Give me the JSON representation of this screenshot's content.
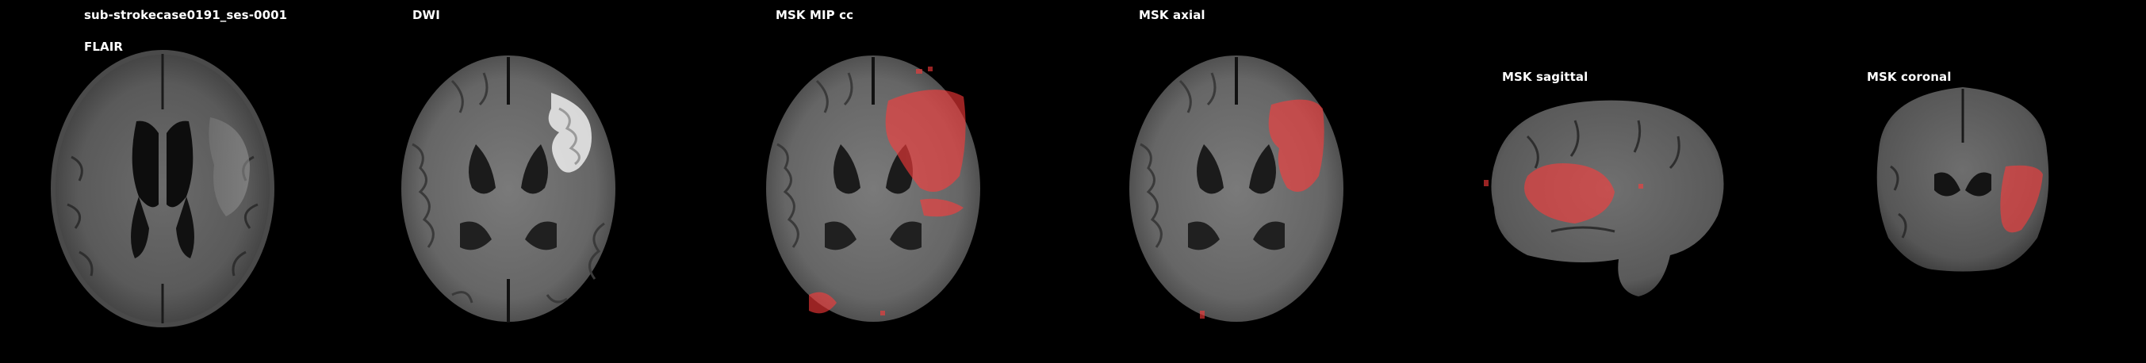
{
  "figure": {
    "subject_title": "sub-strokecase0191_ses-0001",
    "panels": [
      {
        "title": "FLAIR",
        "view": "axial",
        "modality": "FLAIR",
        "overlay": "none"
      },
      {
        "title": "DWI",
        "view": "axial",
        "modality": "DWI",
        "overlay": "none",
        "hyperintensity": "right-side lesion"
      },
      {
        "title": "MSK MIP cc",
        "view": "axial",
        "modality": "DWI",
        "overlay": "red lesion mask (maximum intensity projection)"
      },
      {
        "title": "MSK axial",
        "view": "axial",
        "modality": "DWI",
        "overlay": "red lesion mask"
      },
      {
        "title": "MSK sagittal",
        "view": "sagittal",
        "modality": "DWI",
        "overlay": "red lesion mask"
      },
      {
        "title": "MSK coronal",
        "view": "coronal",
        "modality": "DWI",
        "overlay": "red lesion mask"
      }
    ],
    "colors": {
      "background": "#000000",
      "text": "#ffffff",
      "mask": "#ff3b3b"
    }
  }
}
